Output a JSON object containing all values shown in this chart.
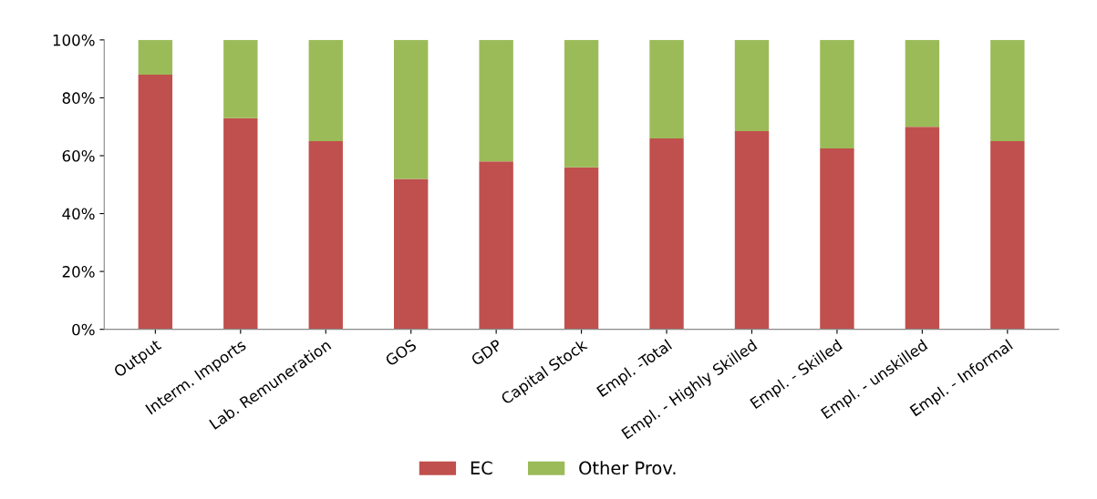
{
  "chart_data": {
    "type": "bar",
    "stacked": true,
    "categories": [
      "Output",
      "Interm. Imports",
      "Lab. Remuneration",
      "GOS",
      "GDP",
      "Capital Stock",
      "Empl. -Total",
      "Empl. - Highly Skilled",
      "Empl. - Skilled",
      "Empl. - unskilled",
      "Empl. - Informal"
    ],
    "series": [
      {
        "name": "EC",
        "color": "#c0504d",
        "values": [
          88,
          73,
          65,
          52,
          58,
          56,
          66,
          68.5,
          62.5,
          70,
          65
        ]
      },
      {
        "name": "Other Prov.",
        "color": "#9bbb59",
        "values": [
          12,
          27,
          35,
          48,
          42,
          44,
          34,
          31.5,
          37.5,
          30,
          35
        ]
      }
    ],
    "ylim": [
      0,
      100
    ],
    "yticks": [
      {
        "value": 0,
        "label": "0%"
      },
      {
        "value": 20,
        "label": "20%"
      },
      {
        "value": 40,
        "label": "40%"
      },
      {
        "value": 60,
        "label": "60%"
      },
      {
        "value": 80,
        "label": "80%"
      },
      {
        "value": 100,
        "label": "100%"
      }
    ],
    "grid": false,
    "legend": "bottom"
  }
}
